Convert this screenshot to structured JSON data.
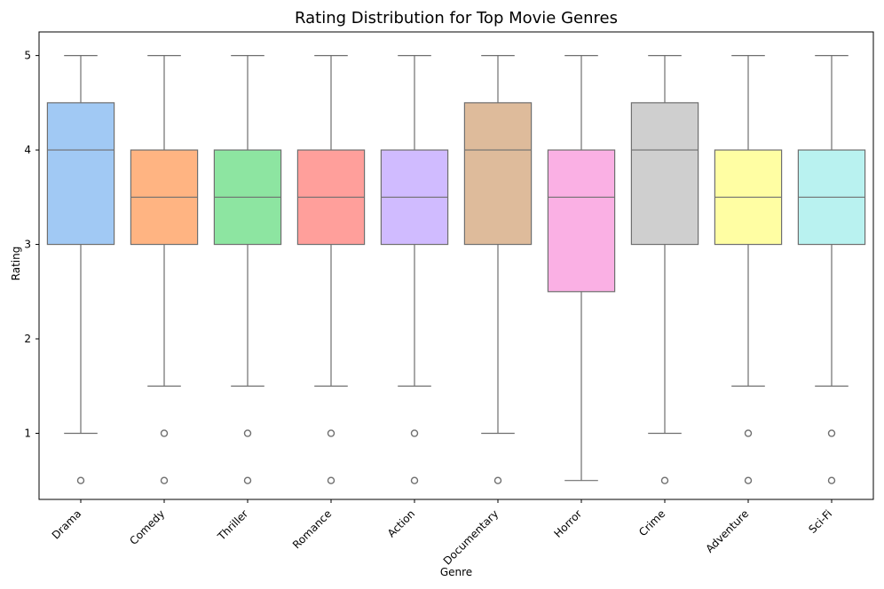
{
  "chart_data": {
    "type": "box",
    "title": "Rating Distribution for Top Movie Genres",
    "xlabel": "Genre",
    "ylabel": "Rating",
    "ylim": [
      0.3,
      5.25
    ],
    "yticks": [
      1,
      2,
      3,
      4,
      5
    ],
    "categories": [
      "Drama",
      "Comedy",
      "Thriller",
      "Romance",
      "Action",
      "Documentary",
      "Horror",
      "Crime",
      "Adventure",
      "Sci-Fi"
    ],
    "colors": [
      "#a1c9f4",
      "#ffb482",
      "#8de5a1",
      "#ff9f9b",
      "#d0bbff",
      "#debb9b",
      "#fab0e4",
      "#cfcfcf",
      "#fffea3",
      "#b9f2f0"
    ],
    "boxes": [
      {
        "whisker_low": 1.0,
        "q1": 3.0,
        "median": 4.0,
        "q3": 4.5,
        "whisker_high": 5.0,
        "outliers": [
          0.5
        ]
      },
      {
        "whisker_low": 1.5,
        "q1": 3.0,
        "median": 3.5,
        "q3": 4.0,
        "whisker_high": 5.0,
        "outliers": [
          1.0,
          0.5
        ]
      },
      {
        "whisker_low": 1.5,
        "q1": 3.0,
        "median": 3.5,
        "q3": 4.0,
        "whisker_high": 5.0,
        "outliers": [
          1.0,
          0.5
        ]
      },
      {
        "whisker_low": 1.5,
        "q1": 3.0,
        "median": 3.5,
        "q3": 4.0,
        "whisker_high": 5.0,
        "outliers": [
          1.0,
          0.5
        ]
      },
      {
        "whisker_low": 1.5,
        "q1": 3.0,
        "median": 3.5,
        "q3": 4.0,
        "whisker_high": 5.0,
        "outliers": [
          1.0,
          0.5
        ]
      },
      {
        "whisker_low": 1.0,
        "q1": 3.0,
        "median": 4.0,
        "q3": 4.5,
        "whisker_high": 5.0,
        "outliers": [
          0.5
        ]
      },
      {
        "whisker_low": 0.5,
        "q1": 2.5,
        "median": 3.5,
        "q3": 4.0,
        "whisker_high": 5.0,
        "outliers": []
      },
      {
        "whisker_low": 1.0,
        "q1": 3.0,
        "median": 4.0,
        "q3": 4.5,
        "whisker_high": 5.0,
        "outliers": [
          0.5
        ]
      },
      {
        "whisker_low": 1.5,
        "q1": 3.0,
        "median": 3.5,
        "q3": 4.0,
        "whisker_high": 5.0,
        "outliers": [
          1.0,
          0.5
        ]
      },
      {
        "whisker_low": 1.5,
        "q1": 3.0,
        "median": 3.5,
        "q3": 4.0,
        "whisker_high": 5.0,
        "outliers": [
          1.0,
          0.5
        ]
      }
    ]
  }
}
